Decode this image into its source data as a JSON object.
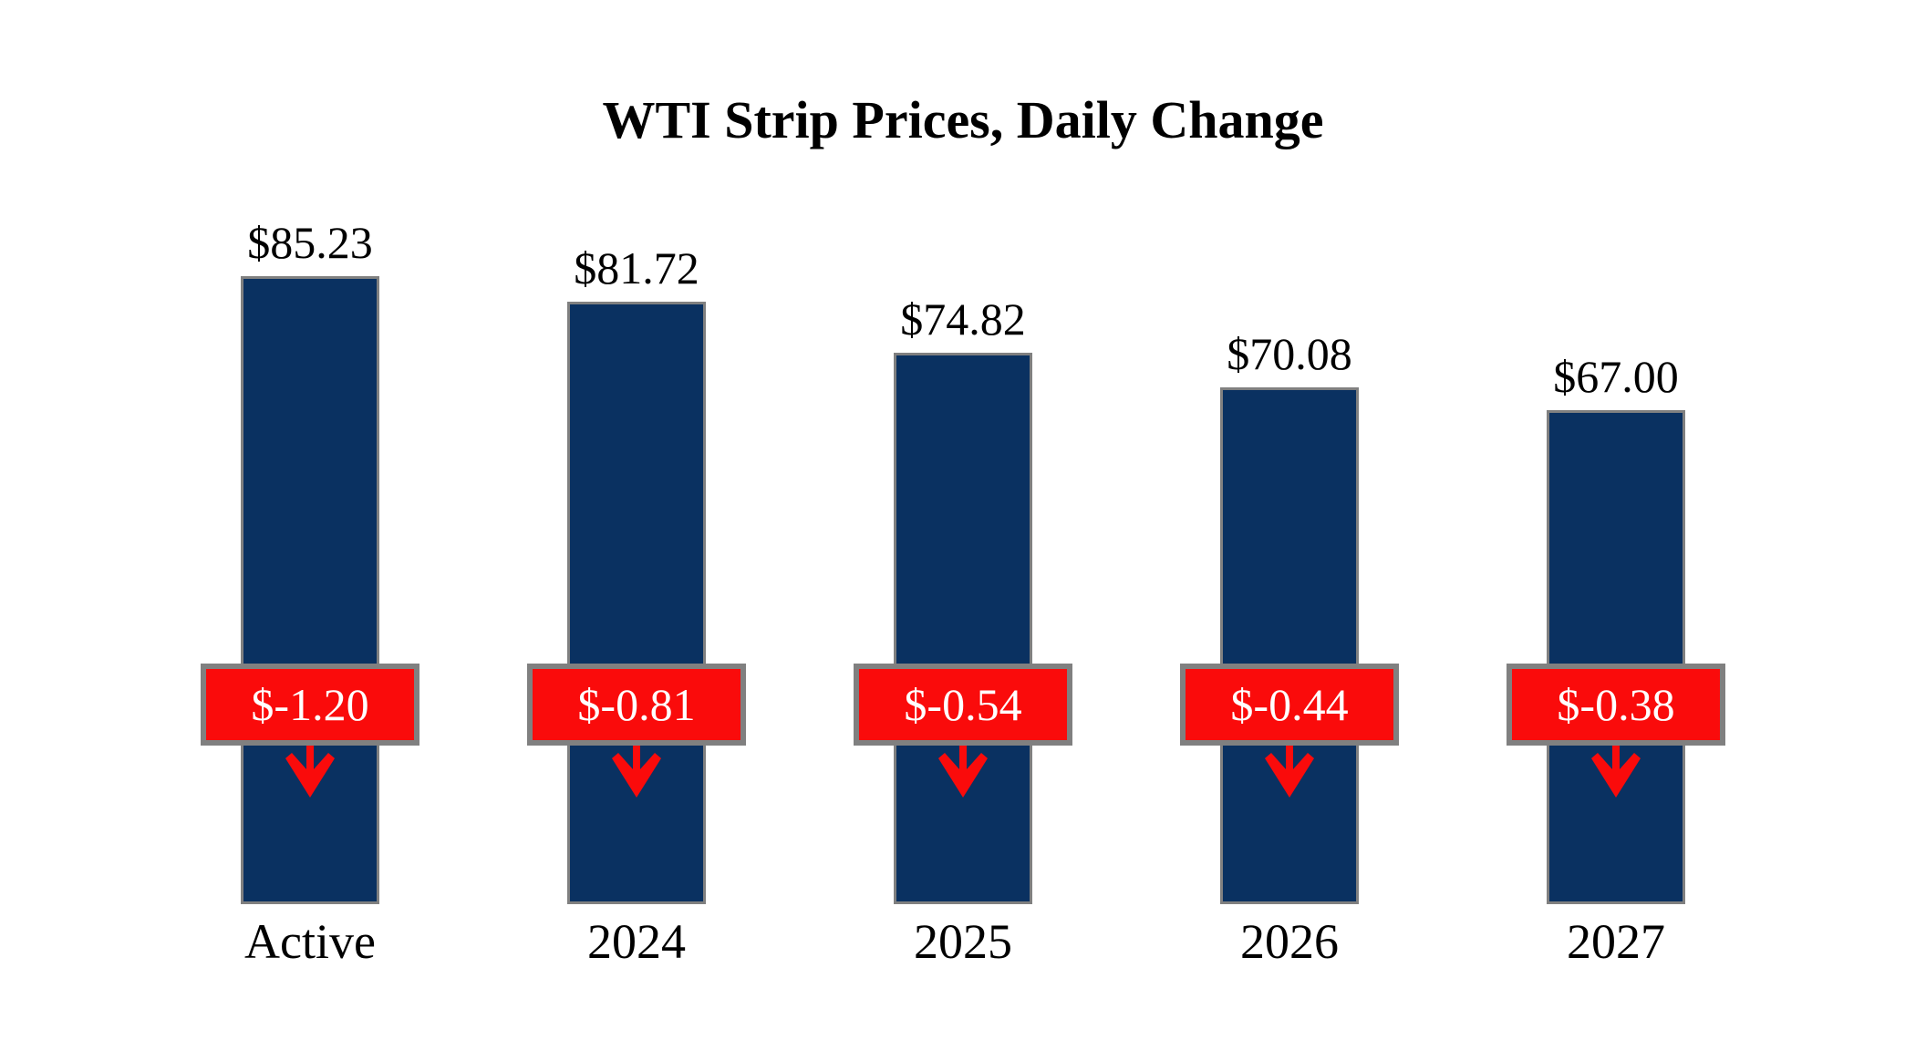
{
  "title": "WTI Strip Prices, Daily Change",
  "colors": {
    "background": "#FFFFFF",
    "bar_fill": "#0A3161",
    "bar_border": "#808080",
    "badge_fill": "#FA0B0B",
    "badge_border": "#808080",
    "badge_text": "#FFFFFF",
    "arrow": "#FA0B0B",
    "text": "#000000"
  },
  "chart_data": {
    "type": "bar",
    "title": "WTI Strip Prices, Daily Change",
    "categories": [
      "Active",
      "2024",
      "2025",
      "2026",
      "2027"
    ],
    "series": [
      {
        "name": "Strip Price ($/bbl)",
        "values": [
          85.23,
          81.72,
          74.82,
          70.08,
          67.0
        ]
      },
      {
        "name": "Daily Change ($/bbl)",
        "values": [
          -1.2,
          -0.81,
          -0.54,
          -0.44,
          -0.38
        ]
      }
    ],
    "value_labels": [
      "$85.23",
      "$81.72",
      "$74.82",
      "$70.08",
      "$67.00"
    ],
    "change_labels": [
      "$-1.20",
      "$-0.81",
      "$-0.54",
      "$-0.44",
      "$-0.38"
    ],
    "xlabel": "",
    "ylabel": "",
    "ylim": [
      0,
      85.23
    ],
    "grid": false,
    "legend": false,
    "annotations": "red badges with downward arrows show negative daily change on each bar"
  }
}
